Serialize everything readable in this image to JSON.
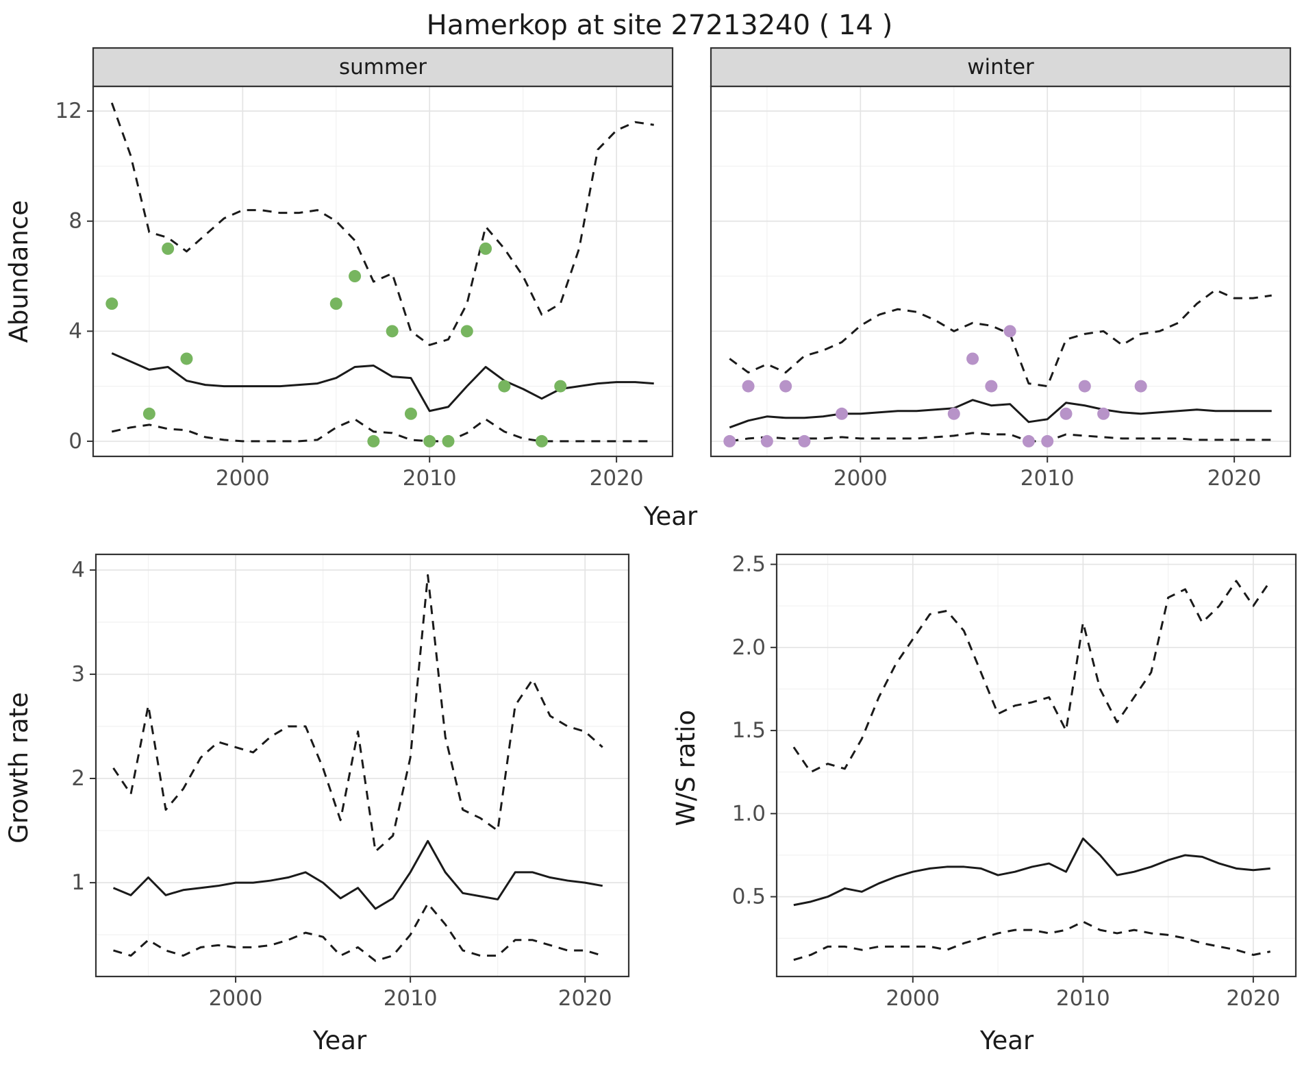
{
  "title": "Hamerkop at site 27213240 ( 14 )",
  "top_plot": {
    "ylabel": "Abundance",
    "xlabel": "Year",
    "facets": [
      "summer",
      "winter"
    ]
  },
  "growth_plot": {
    "ylabel": "Growth rate",
    "xlabel": "Year"
  },
  "ws_plot": {
    "ylabel": "W/S ratio",
    "xlabel": "Year"
  },
  "colors": {
    "line": "#1a1a1a",
    "frame": "#333333",
    "strip_bg": "#d9d9d9",
    "grid_major": "#e4e4e4",
    "grid_minor": "#f1f1f1",
    "axis_text": "#4d4d4d",
    "text": "#1a1a1a",
    "summer_point": "#77b55f",
    "winter_point": "#b793c8"
  },
  "chart_data": [
    {
      "id": "abundance_summer",
      "type": "line",
      "facet_label": "summer",
      "xlabel": "Year",
      "ylabel": "Abundance",
      "xlim": [
        1992,
        2023
      ],
      "ylim": [
        -0.55,
        12.9
      ],
      "xticks": [
        2000,
        2010,
        2020
      ],
      "xtick_labels": [
        "2000",
        "2010",
        "2020"
      ],
      "yticks": [
        0,
        4,
        8,
        12
      ],
      "ytick_labels": [
        "0",
        "4",
        "8",
        "12"
      ],
      "x": [
        1993,
        1994,
        1995,
        1996,
        1997,
        1998,
        1999,
        2000,
        2001,
        2002,
        2003,
        2004,
        2005,
        2006,
        2007,
        2008,
        2009,
        2010,
        2011,
        2012,
        2013,
        2014,
        2015,
        2016,
        2017,
        2018,
        2019,
        2020,
        2021,
        2022
      ],
      "series": [
        {
          "name": "mean",
          "style": "solid",
          "values": [
            3.2,
            2.9,
            2.6,
            2.7,
            2.2,
            2.05,
            2.0,
            2.0,
            2.0,
            2.0,
            2.05,
            2.1,
            2.3,
            2.7,
            2.75,
            2.35,
            2.3,
            1.1,
            1.25,
            2.0,
            2.7,
            2.2,
            1.9,
            1.55,
            1.9,
            2.0,
            2.1,
            2.15,
            2.15,
            2.1
          ]
        },
        {
          "name": "upper_ci",
          "style": "dashed",
          "values": [
            12.3,
            10.4,
            7.6,
            7.4,
            6.9,
            7.5,
            8.1,
            8.4,
            8.4,
            8.3,
            8.3,
            8.4,
            8.0,
            7.3,
            5.8,
            6.1,
            4.0,
            3.5,
            3.7,
            5.0,
            7.8,
            7.0,
            6.0,
            4.6,
            5.0,
            7.0,
            10.6,
            11.3,
            11.6,
            11.5
          ]
        },
        {
          "name": "lower_ci",
          "style": "dashed",
          "values": [
            0.35,
            0.5,
            0.6,
            0.45,
            0.4,
            0.15,
            0.05,
            0,
            0,
            0,
            0,
            0.05,
            0.5,
            0.8,
            0.35,
            0.3,
            0.05,
            0,
            0,
            0.3,
            0.8,
            0.35,
            0.1,
            0,
            0,
            0,
            0,
            0,
            0,
            0
          ]
        }
      ],
      "points": {
        "color": "#77b55f",
        "x": [
          1993,
          1995,
          1996,
          1997,
          2005,
          2006,
          2007,
          2008,
          2009,
          2010,
          2011,
          2012,
          2013,
          2014,
          2016,
          2017
        ],
        "y": [
          5,
          1,
          7,
          3,
          5,
          6,
          0,
          4,
          1,
          0,
          0,
          4,
          7,
          2,
          0,
          2
        ]
      }
    },
    {
      "id": "abundance_winter",
      "type": "line",
      "facet_label": "winter",
      "xlabel": "Year",
      "ylabel": "Abundance",
      "xlim": [
        1992,
        2023
      ],
      "ylim": [
        -0.55,
        12.9
      ],
      "xticks": [
        2000,
        2010,
        2020
      ],
      "xtick_labels": [
        "2000",
        "2010",
        "2020"
      ],
      "yticks": [
        0,
        4,
        8,
        12
      ],
      "ytick_labels": [
        "0",
        "4",
        "8",
        "12"
      ],
      "x": [
        1993,
        1994,
        1995,
        1996,
        1997,
        1998,
        1999,
        2000,
        2001,
        2002,
        2003,
        2004,
        2005,
        2006,
        2007,
        2008,
        2009,
        2010,
        2011,
        2012,
        2013,
        2014,
        2015,
        2016,
        2017,
        2018,
        2019,
        2020,
        2021,
        2022
      ],
      "series": [
        {
          "name": "mean",
          "style": "solid",
          "values": [
            0.5,
            0.75,
            0.9,
            0.85,
            0.85,
            0.9,
            1.0,
            1.0,
            1.05,
            1.1,
            1.1,
            1.15,
            1.2,
            1.5,
            1.3,
            1.35,
            0.7,
            0.8,
            1.4,
            1.3,
            1.15,
            1.05,
            1.0,
            1.05,
            1.1,
            1.15,
            1.1,
            1.1,
            1.1,
            1.1
          ]
        },
        {
          "name": "upper_ci",
          "style": "dashed",
          "values": [
            3.0,
            2.5,
            2.8,
            2.5,
            3.1,
            3.3,
            3.6,
            4.2,
            4.6,
            4.8,
            4.7,
            4.4,
            4.0,
            4.3,
            4.2,
            3.9,
            2.1,
            2.0,
            3.7,
            3.9,
            4.0,
            3.5,
            3.9,
            4.0,
            4.3,
            5.0,
            5.5,
            5.2,
            5.2,
            5.3
          ]
        },
        {
          "name": "lower_ci",
          "style": "dashed",
          "values": [
            0,
            0.1,
            0.15,
            0.1,
            0.1,
            0.1,
            0.15,
            0.1,
            0.1,
            0.1,
            0.1,
            0.15,
            0.2,
            0.3,
            0.25,
            0.25,
            0,
            0,
            0.25,
            0.2,
            0.15,
            0.1,
            0.1,
            0.1,
            0.1,
            0.05,
            0.05,
            0.05,
            0.05,
            0.05
          ]
        }
      ],
      "points": {
        "color": "#b793c8",
        "x": [
          1993,
          1994,
          1995,
          1996,
          1997,
          1999,
          2005,
          2006,
          2007,
          2008,
          2009,
          2010,
          2011,
          2012,
          2013,
          2015
        ],
        "y": [
          0,
          2,
          0,
          2,
          0,
          1,
          1,
          3,
          2,
          4,
          0,
          0,
          1,
          2,
          1,
          2
        ]
      }
    },
    {
      "id": "growth_rate",
      "type": "line",
      "facet_label": null,
      "xlabel": "Year",
      "ylabel": "Growth rate",
      "xlim": [
        1992,
        2022.5
      ],
      "ylim": [
        0.1,
        4.15
      ],
      "xticks": [
        2000,
        2010,
        2020
      ],
      "xtick_labels": [
        "2000",
        "2010",
        "2020"
      ],
      "yticks": [
        1,
        2,
        3,
        4
      ],
      "ytick_labels": [
        "1",
        "2",
        "3",
        "4"
      ],
      "x": [
        1993,
        1994,
        1995,
        1996,
        1997,
        1998,
        1999,
        2000,
        2001,
        2002,
        2003,
        2004,
        2005,
        2006,
        2007,
        2008,
        2009,
        2010,
        2011,
        2012,
        2013,
        2014,
        2015,
        2016,
        2017,
        2018,
        2019,
        2020,
        2021
      ],
      "series": [
        {
          "name": "mean",
          "style": "solid",
          "values": [
            0.95,
            0.88,
            1.05,
            0.88,
            0.93,
            0.95,
            0.97,
            1.0,
            1.0,
            1.02,
            1.05,
            1.1,
            1.0,
            0.85,
            0.95,
            0.75,
            0.85,
            1.1,
            1.4,
            1.1,
            0.9,
            0.87,
            0.84,
            1.1,
            1.1,
            1.05,
            1.02,
            1.0,
            0.97
          ]
        },
        {
          "name": "upper_ci",
          "style": "dashed",
          "values": [
            2.1,
            1.85,
            2.7,
            1.7,
            1.9,
            2.2,
            2.35,
            2.3,
            2.25,
            2.4,
            2.5,
            2.5,
            2.1,
            1.6,
            2.45,
            1.3,
            1.45,
            2.2,
            3.95,
            2.4,
            1.7,
            1.62,
            1.5,
            2.7,
            2.95,
            2.6,
            2.5,
            2.45,
            2.3
          ]
        },
        {
          "name": "lower_ci",
          "style": "dashed",
          "values": [
            0.35,
            0.3,
            0.45,
            0.35,
            0.3,
            0.38,
            0.4,
            0.38,
            0.38,
            0.4,
            0.45,
            0.52,
            0.48,
            0.3,
            0.38,
            0.25,
            0.3,
            0.5,
            0.8,
            0.6,
            0.35,
            0.3,
            0.3,
            0.45,
            0.45,
            0.4,
            0.35,
            0.35,
            0.3
          ]
        }
      ],
      "points": null
    },
    {
      "id": "ws_ratio",
      "type": "line",
      "facet_label": null,
      "xlabel": "Year",
      "ylabel": "W/S ratio",
      "xlim": [
        1992,
        2022.5
      ],
      "ylim": [
        0.02,
        2.56
      ],
      "xticks": [
        2000,
        2010,
        2020
      ],
      "xtick_labels": [
        "2000",
        "2010",
        "2020"
      ],
      "yticks": [
        0.5,
        1.0,
        1.5,
        2.0,
        2.5
      ],
      "ytick_labels": [
        "0.5",
        "1.0",
        "1.5",
        "2.0",
        "2.5"
      ],
      "x": [
        1993,
        1994,
        1995,
        1996,
        1997,
        1998,
        1999,
        2000,
        2001,
        2002,
        2003,
        2004,
        2005,
        2006,
        2007,
        2008,
        2009,
        2010,
        2011,
        2012,
        2013,
        2014,
        2015,
        2016,
        2017,
        2018,
        2019,
        2020,
        2021
      ],
      "series": [
        {
          "name": "mean",
          "style": "solid",
          "values": [
            0.45,
            0.47,
            0.5,
            0.55,
            0.53,
            0.58,
            0.62,
            0.65,
            0.67,
            0.68,
            0.68,
            0.67,
            0.63,
            0.65,
            0.68,
            0.7,
            0.65,
            0.85,
            0.75,
            0.63,
            0.65,
            0.68,
            0.72,
            0.75,
            0.74,
            0.7,
            0.67,
            0.66,
            0.67
          ]
        },
        {
          "name": "upper_ci",
          "style": "dashed",
          "values": [
            1.4,
            1.25,
            1.3,
            1.27,
            1.45,
            1.7,
            1.9,
            2.05,
            2.2,
            2.22,
            2.1,
            1.85,
            1.6,
            1.65,
            1.67,
            1.7,
            1.5,
            2.15,
            1.75,
            1.55,
            1.7,
            1.85,
            2.3,
            2.35,
            2.15,
            2.25,
            2.4,
            2.25,
            2.4
          ]
        },
        {
          "name": "lower_ci",
          "style": "dashed",
          "values": [
            0.12,
            0.15,
            0.2,
            0.2,
            0.18,
            0.2,
            0.2,
            0.2,
            0.2,
            0.18,
            0.22,
            0.25,
            0.28,
            0.3,
            0.3,
            0.28,
            0.3,
            0.35,
            0.3,
            0.28,
            0.3,
            0.28,
            0.27,
            0.25,
            0.22,
            0.2,
            0.18,
            0.15,
            0.17
          ]
        }
      ],
      "points": null
    }
  ]
}
